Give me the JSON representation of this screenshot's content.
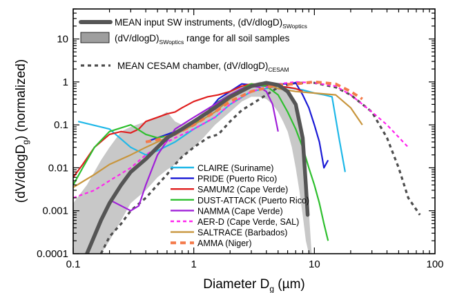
{
  "chart_data": {
    "type": "line",
    "xlabel": "Diameter D",
    "xlabel_sub": "g",
    "xlabel_unit": " (µm)",
    "ylabel": "(dV/dlogD",
    "ylabel_sub": "g",
    "ylabel_end": ") (normalized)",
    "x_scale": "log",
    "y_scale": "log",
    "xlim": [
      0.1,
      100
    ],
    "ylim": [
      0.0001,
      50
    ],
    "x_ticks": [
      "0.1",
      "1",
      "10",
      "100"
    ],
    "y_ticks": [
      "0.0001",
      "0.001",
      "0.01",
      "0.1",
      "1",
      "10"
    ],
    "grid": false,
    "legend_top": [
      {
        "kind": "line",
        "main": "MEAN input SW instruments, (dV/dlogD)",
        "sub": "SWoptics",
        "tail": ""
      },
      {
        "kind": "band",
        "main": "(dV/dlogD)",
        "sub": "SWoptics",
        "tail": " range for all soil samples"
      },
      {
        "kind": "dotted",
        "main": "MEAN CESAM chamber, (dV/dlogD)",
        "sub": "CESAM",
        "tail": ""
      }
    ],
    "range_band": {
      "color": "#c8c8c8",
      "x": [
        0.1,
        0.13,
        0.17,
        0.2,
        0.25,
        0.3,
        0.4,
        0.5,
        0.6,
        0.7,
        0.8,
        1.0,
        1.2,
        1.5,
        2.0,
        2.5,
        3.0,
        3.5,
        4.0,
        4.5,
        5.0,
        5.5,
        6.0,
        6.5,
        7.0,
        7.5,
        8.0,
        8.5,
        9.0,
        9.5
      ],
      "upper": [
        0.0015,
        0.004,
        0.015,
        0.03,
        0.07,
        0.09,
        0.12,
        0.15,
        0.2,
        0.12,
        0.1,
        0.13,
        0.2,
        0.3,
        0.6,
        0.8,
        0.9,
        1.0,
        1.0,
        0.95,
        0.85,
        0.7,
        0.55,
        0.4,
        0.2,
        0.1,
        0.05,
        0.01,
        0.001,
        0.0001
      ],
      "lower": [
        0.0001,
        0.0001,
        0.0001,
        0.0002,
        0.0006,
        0.0015,
        0.003,
        0.006,
        0.009,
        0.012,
        0.018,
        0.03,
        0.05,
        0.1,
        0.2,
        0.35,
        0.45,
        0.45,
        0.4,
        0.3,
        0.2,
        0.12,
        0.07,
        0.03,
        0.01,
        0.003,
        0.0008,
        0.0002,
        0.0001,
        0.0001
      ]
    },
    "mean_sw": {
      "color": "#555555",
      "x": [
        0.13,
        0.17,
        0.2,
        0.25,
        0.3,
        0.4,
        0.5,
        0.6,
        0.8,
        1.0,
        1.5,
        2.0,
        3.0,
        4.0,
        5.0,
        6.0,
        7.0,
        8.0,
        8.5,
        8.8
      ],
      "y": [
        0.0001,
        0.0006,
        0.0015,
        0.004,
        0.008,
        0.016,
        0.03,
        0.05,
        0.08,
        0.12,
        0.25,
        0.45,
        0.8,
        0.95,
        0.85,
        0.6,
        0.3,
        0.05,
        0.004,
        0.0008
      ]
    },
    "mean_cesam": {
      "color": "#4d4d4d",
      "x": [
        0.17,
        0.2,
        0.25,
        0.3,
        0.4,
        0.5,
        0.6,
        0.7,
        0.8,
        1.0,
        1.3,
        1.6,
        2.0,
        2.5,
        3.0,
        4.0,
        5.0,
        7.0,
        10.0,
        15.0,
        20.0,
        30.0,
        40.0,
        50.0,
        60.0,
        75.0
      ],
      "y": [
        0.0001,
        0.00025,
        0.0005,
        0.001,
        0.002,
        0.004,
        0.007,
        0.012,
        0.018,
        0.03,
        0.05,
        0.06,
        0.12,
        0.22,
        0.3,
        0.5,
        0.75,
        0.95,
        0.95,
        0.75,
        0.5,
        0.2,
        0.05,
        0.01,
        0.002,
        0.0008
      ]
    },
    "series": [
      {
        "name": "CLAIRE (Suriname)",
        "color": "#1fb8e8",
        "dash": "",
        "x": [
          0.11,
          0.2,
          0.3,
          0.4,
          0.5,
          0.7,
          1.0,
          1.5,
          2.0,
          3.0,
          5.0,
          8.0,
          10.0,
          12.0,
          14.0,
          16.0,
          18.0
        ],
        "y": [
          0.12,
          0.08,
          0.03,
          0.02,
          0.025,
          0.04,
          0.08,
          0.15,
          0.3,
          0.6,
          0.8,
          0.65,
          0.55,
          0.5,
          0.45,
          0.05,
          0.008
        ]
      },
      {
        "name": "PRIDE (Puerto Rico)",
        "color": "#1a1ad6",
        "dash": "",
        "x": [
          0.4,
          0.5,
          0.7,
          1.0,
          1.3,
          1.6,
          2.0,
          2.5,
          3.0,
          4.0,
          5.0,
          6.0,
          7.0,
          8.0,
          9.0,
          10.0,
          11.0,
          12.0,
          13.0
        ],
        "y": [
          0.04,
          0.05,
          0.07,
          0.1,
          0.2,
          0.4,
          0.6,
          0.9,
          0.85,
          0.8,
          0.9,
          0.9,
          0.95,
          0.5,
          0.25,
          0.1,
          0.04,
          0.01,
          0.015
        ]
      },
      {
        "name": "SAMUM2 (Cape Verde)",
        "color": "#e01e1e",
        "dash": "",
        "x": [
          0.1,
          0.12,
          0.15,
          0.2,
          0.25,
          0.3,
          0.35,
          0.4,
          0.5,
          0.6,
          0.7,
          0.8,
          1.0,
          1.3,
          1.6,
          2.0,
          2.5,
          3.0,
          4.0,
          5.0,
          6.0,
          7.0,
          8.0
        ],
        "y": [
          0.006,
          0.012,
          0.03,
          0.06,
          0.07,
          0.065,
          0.08,
          0.12,
          0.15,
          0.18,
          0.2,
          0.25,
          0.35,
          0.45,
          0.5,
          0.6,
          0.8,
          0.9,
          0.85,
          0.8,
          0.75,
          0.7,
          0.6
        ]
      },
      {
        "name": "DUST-ATTACK (Puerto Rico)",
        "color": "#2ebf2e",
        "dash": "",
        "x": [
          0.1,
          0.12,
          0.15,
          0.2,
          0.3,
          0.4,
          0.5,
          0.7,
          1.0,
          1.3,
          1.6,
          2.0,
          2.5,
          3.0,
          4.0,
          5.0,
          6.0,
          7.0,
          8.0,
          9.0,
          10.0,
          11.0,
          12.0,
          13.0
        ],
        "y": [
          0.004,
          0.01,
          0.03,
          0.07,
          0.1,
          0.06,
          0.05,
          0.06,
          0.1,
          0.2,
          0.35,
          0.5,
          0.7,
          0.9,
          0.8,
          0.5,
          0.2,
          0.08,
          0.03,
          0.01,
          0.004,
          0.0015,
          0.0005,
          0.0002
        ]
      },
      {
        "name": "NAMMA (Cape Verde)",
        "color": "#a020d8",
        "dash": "",
        "x": [
          0.2,
          0.3,
          0.35,
          0.4,
          0.5,
          0.7,
          1.0,
          1.5,
          2.0,
          2.5,
          3.0,
          3.5,
          4.0,
          4.5,
          5.0
        ],
        "y": [
          0.0018,
          0.001,
          0.0013,
          0.004,
          0.02,
          0.08,
          0.15,
          0.3,
          0.5,
          0.7,
          0.8,
          0.75,
          0.6,
          0.3,
          0.07
        ]
      },
      {
        "name": "AER-D (Cape Verde, SAL)",
        "color": "#ff22ee",
        "dash": "5,4",
        "x": [
          0.1,
          0.15,
          0.2,
          0.3,
          0.4,
          0.5,
          0.7,
          1.0,
          1.5,
          2.0,
          3.0,
          5.0,
          7.0,
          10.0,
          15.0,
          20.0,
          30.0,
          40.0,
          60.0
        ],
        "y": [
          0.002,
          0.003,
          0.005,
          0.01,
          0.02,
          0.03,
          0.05,
          0.08,
          0.15,
          0.3,
          0.6,
          0.9,
          1.0,
          0.95,
          0.8,
          0.5,
          0.2,
          0.1,
          0.03
        ]
      },
      {
        "name": "SALTRACE (Barbados)",
        "color": "#c8953c",
        "dash": "",
        "x": [
          0.1,
          0.15,
          0.2,
          0.3,
          0.4,
          0.5,
          0.7,
          1.0,
          1.5,
          2.0,
          3.0,
          4.0,
          5.0,
          7.0,
          10.0,
          15.0,
          20.0,
          25.0
        ],
        "y": [
          0.0035,
          0.007,
          0.012,
          0.02,
          0.03,
          0.04,
          0.06,
          0.1,
          0.2,
          0.4,
          0.8,
          0.9,
          0.7,
          0.6,
          0.55,
          0.5,
          0.25,
          0.1
        ]
      },
      {
        "name": "AMMA (Niger)",
        "color": "#f47a4a",
        "dash": "8,6",
        "x": [
          0.4,
          0.5,
          0.7,
          1.0,
          1.5,
          2.0,
          3.0,
          5.0,
          7.0,
          10.0,
          15.0,
          20.0,
          25.0
        ],
        "y": [
          0.04,
          0.045,
          0.06,
          0.1,
          0.2,
          0.35,
          0.6,
          0.85,
          0.9,
          1.0,
          0.9,
          0.6,
          0.4
        ]
      }
    ]
  }
}
